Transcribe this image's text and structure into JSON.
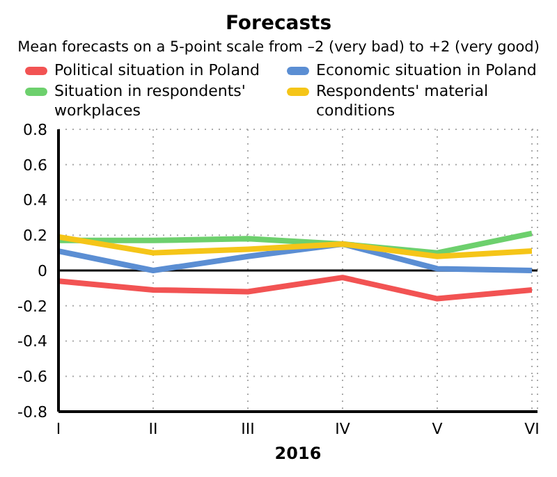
{
  "chart_data": {
    "type": "line",
    "title": "Forecasts",
    "subtitle": "Mean forecasts on a 5-point scale from –2 (very bad) to +2 (very good)",
    "xlabel": "2016",
    "categories": [
      "I",
      "II",
      "III",
      "IV",
      "V",
      "VI"
    ],
    "series": [
      {
        "name": "Political situation in Poland",
        "color": "#f25353",
        "values": [
          -0.06,
          -0.11,
          -0.12,
          -0.04,
          -0.16,
          -0.11
        ]
      },
      {
        "name": "Economic situation in Poland",
        "color": "#5b8ed3",
        "values": [
          0.11,
          0.0,
          0.08,
          0.15,
          0.01,
          0.0
        ]
      },
      {
        "name": "Situation in respondents' workplaces",
        "color": "#6dd06d",
        "values": [
          0.17,
          0.17,
          0.18,
          0.15,
          0.1,
          0.21
        ]
      },
      {
        "name": "Respondents' material conditions",
        "color": "#f5c518",
        "values": [
          0.19,
          0.1,
          0.12,
          0.15,
          0.08,
          0.11
        ]
      }
    ],
    "ylim": [
      -0.8,
      0.8
    ],
    "yticks": [
      {
        "value": -0.8,
        "label": "-0.8"
      },
      {
        "value": -0.6,
        "label": "-0.6"
      },
      {
        "value": -0.4,
        "label": "-0.4"
      },
      {
        "value": -0.2,
        "label": "-0.2"
      },
      0,
      {
        "value": 0.2,
        "label": "0.2"
      },
      {
        "value": 0.4,
        "label": "0.4"
      },
      {
        "value": 0.6,
        "label": "0.6"
      },
      {
        "value": 0.8,
        "label": "0.8"
      }
    ],
    "ref_lines": [
      {
        "axis": "y",
        "value": 0,
        "color": "#000000"
      }
    ],
    "grid": true,
    "legend": "top",
    "marker": "none",
    "line_style": "solid"
  }
}
